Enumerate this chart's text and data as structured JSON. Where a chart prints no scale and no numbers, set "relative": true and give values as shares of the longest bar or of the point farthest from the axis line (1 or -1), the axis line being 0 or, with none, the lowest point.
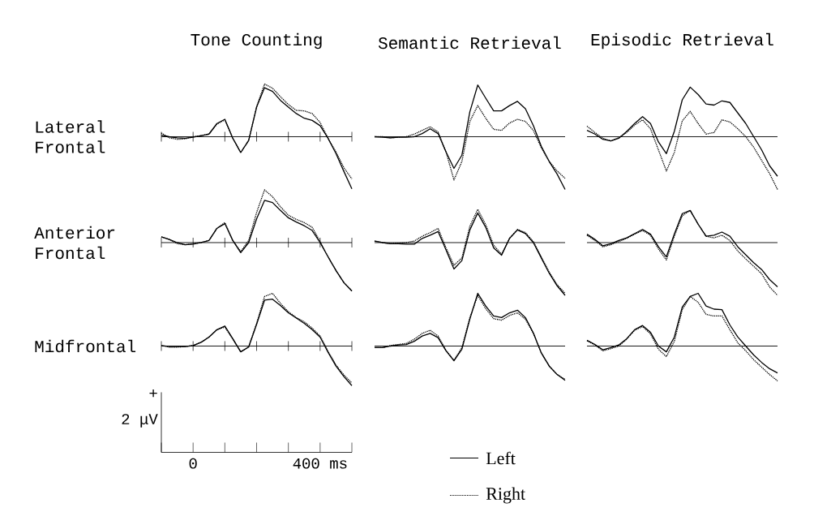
{
  "chart_data": [
    {
      "type": "line",
      "title": "Tone Counting",
      "ylabel": "Lateral Frontal",
      "relative": true,
      "tick_labels": false,
      "x": [
        -100,
        -75,
        -50,
        -25,
        0,
        25,
        50,
        75,
        100,
        125,
        150,
        175,
        200,
        225,
        250,
        275,
        300,
        325,
        350,
        375,
        400,
        425,
        450,
        475,
        500
      ],
      "xlim": [
        -100,
        500
      ],
      "xticks": [
        {
          "value": -100,
          "label": null
        },
        {
          "value": 0,
          "label": null
        },
        {
          "value": 100,
          "label": null
        },
        {
          "value": 200,
          "label": null
        },
        {
          "value": 300,
          "label": null
        },
        {
          "value": 400,
          "label": null
        },
        {
          "value": 500,
          "label": null
        }
      ],
      "series": [
        {
          "color": "#000000",
          "line_style": "solid",
          "values": [
            0.03,
            0,
            -0.02,
            -0.03,
            -0.01,
            0.02,
            0.05,
            0.25,
            0.33,
            -0.03,
            -0.3,
            -0.07,
            0.56,
            0.93,
            0.86,
            0.69,
            0.56,
            0.44,
            0.35,
            0.31,
            0.21,
            -0.03,
            -0.32,
            -0.66,
            -0.99
          ]
        },
        {
          "color": "#000000",
          "line_style": "dotted",
          "values": [
            0.07,
            -0.02,
            -0.05,
            -0.04,
            0,
            0.02,
            0.05,
            0.24,
            0.32,
            -0.03,
            -0.3,
            -0.07,
            0.57,
            1.0,
            0.92,
            0.76,
            0.61,
            0.5,
            0.49,
            0.44,
            0.27,
            -0.03,
            -0.29,
            -0.59,
            -0.8
          ]
        }
      ]
    },
    {
      "type": "line",
      "title": "Semantic Retrieval",
      "relative": true,
      "tick_labels": false,
      "categories": [
        null,
        null,
        null,
        null,
        null,
        null,
        null,
        null,
        null,
        null,
        null,
        null,
        null,
        null,
        null,
        null,
        null,
        null,
        null,
        null,
        null,
        null,
        null,
        null,
        null
      ],
      "series": [
        {
          "color": "#000000",
          "line_style": "solid",
          "values": [
            0,
            -0.01,
            -0.02,
            -0.01,
            -0.01,
            0,
            0.06,
            0.15,
            0.06,
            -0.29,
            -0.6,
            -0.35,
            0.47,
            0.98,
            0.73,
            0.49,
            0.49,
            0.59,
            0.67,
            0.53,
            0.21,
            -0.18,
            -0.47,
            -0.71,
            -1.0
          ]
        },
        {
          "color": "#000000",
          "line_style": "dotted",
          "values": [
            0,
            0,
            -0.02,
            -0.01,
            0,
            0.05,
            0.12,
            0.19,
            0.09,
            -0.29,
            -0.82,
            -0.47,
            0.29,
            0.59,
            0.35,
            0.14,
            0.12,
            0.26,
            0.33,
            0.29,
            0.12,
            -0.21,
            -0.47,
            -0.65,
            -0.79
          ]
        }
      ]
    },
    {
      "type": "line",
      "title": "Episodic Retrieval",
      "relative": true,
      "tick_labels": false,
      "categories": [
        null,
        null,
        null,
        null,
        null,
        null,
        null,
        null,
        null,
        null,
        null,
        null,
        null,
        null,
        null,
        null,
        null,
        null,
        null,
        null,
        null,
        null,
        null,
        null,
        null
      ],
      "series": [
        {
          "color": "#000000",
          "line_style": "solid",
          "values": [
            0.12,
            0.05,
            -0.05,
            -0.08,
            -0.03,
            0.1,
            0.25,
            0.38,
            0.25,
            -0.1,
            -0.32,
            0.1,
            0.7,
            0.94,
            0.8,
            0.62,
            0.6,
            0.68,
            0.65,
            0.45,
            0.25,
            0,
            -0.25,
            -0.55,
            -0.75
          ]
        },
        {
          "color": "#000000",
          "line_style": "dotted",
          "values": [
            0.2,
            0.08,
            -0.03,
            -0.08,
            -0.02,
            0.08,
            0.22,
            0.32,
            0.15,
            -0.25,
            -0.65,
            -0.3,
            0.3,
            0.48,
            0.25,
            0.05,
            0.08,
            0.32,
            0.28,
            0.15,
            0,
            -0.2,
            -0.45,
            -0.7,
            -1.0
          ]
        }
      ]
    },
    {
      "type": "line",
      "ylabel": "Anterior Frontal",
      "relative": true,
      "tick_labels": false,
      "x": [
        -100,
        -75,
        -50,
        -25,
        0,
        25,
        50,
        75,
        100,
        125,
        150,
        175,
        200,
        225,
        250,
        275,
        300,
        325,
        350,
        375,
        400,
        425,
        450,
        475,
        500
      ],
      "xlim": [
        -100,
        500
      ],
      "xticks": [
        {
          "value": -100,
          "label": null
        },
        {
          "value": 0,
          "label": null
        },
        {
          "value": 100,
          "label": null
        },
        {
          "value": 200,
          "label": null
        },
        {
          "value": 300,
          "label": null
        },
        {
          "value": 400,
          "label": null
        },
        {
          "value": 500,
          "label": null
        }
      ],
      "series": [
        {
          "color": "#000000",
          "line_style": "solid",
          "values": [
            0.11,
            0.06,
            0,
            -0.04,
            -0.03,
            0,
            0.04,
            0.27,
            0.36,
            0.04,
            -0.19,
            0,
            0.45,
            0.8,
            0.76,
            0.61,
            0.47,
            0.39,
            0.32,
            0.23,
            0,
            -0.27,
            -0.53,
            -0.76,
            -0.92
          ]
        },
        {
          "color": "#000000",
          "line_style": "dotted",
          "values": [
            0.11,
            0.06,
            -0.02,
            -0.04,
            -0.02,
            0,
            0.04,
            0.27,
            0.38,
            0.04,
            -0.17,
            0.04,
            0.57,
            1.0,
            0.87,
            0.68,
            0.52,
            0.44,
            0.38,
            0.29,
            0.02,
            -0.27,
            -0.53,
            -0.76,
            -0.91
          ]
        }
      ]
    },
    {
      "type": "line",
      "relative": true,
      "tick_labels": false,
      "categories": [
        null,
        null,
        null,
        null,
        null,
        null,
        null,
        null,
        null,
        null,
        null,
        null,
        null,
        null,
        null,
        null,
        null,
        null,
        null,
        null,
        null,
        null,
        null,
        null,
        null
      ],
      "series": [
        {
          "color": "#000000",
          "line_style": "solid",
          "values": [
            0.03,
            0,
            -0.02,
            -0.02,
            -0.03,
            -0.03,
            0.08,
            0.14,
            0.21,
            -0.14,
            -0.5,
            -0.34,
            0.24,
            0.56,
            0.29,
            -0.1,
            -0.24,
            0.08,
            0.24,
            0.17,
            0,
            -0.29,
            -0.58,
            -0.82,
            -1.0
          ]
        },
        {
          "color": "#000000",
          "line_style": "dotted",
          "values": [
            0.03,
            0,
            -0.02,
            -0.01,
            0,
            0.03,
            0.12,
            0.19,
            0.27,
            -0.1,
            -0.43,
            -0.29,
            0.31,
            0.63,
            0.34,
            -0.05,
            -0.22,
            0.08,
            0.25,
            0.19,
            0.02,
            -0.27,
            -0.56,
            -0.8,
            -0.96
          ]
        }
      ]
    },
    {
      "type": "line",
      "relative": true,
      "tick_labels": false,
      "categories": [
        null,
        null,
        null,
        null,
        null,
        null,
        null,
        null,
        null,
        null,
        null,
        null,
        null,
        null,
        null,
        null,
        null,
        null,
        null,
        null,
        null,
        null,
        null,
        null,
        null
      ],
      "series": [
        {
          "color": "#000000",
          "line_style": "solid",
          "values": [
            0.16,
            0.06,
            -0.06,
            -0.02,
            0.04,
            0.09,
            0.17,
            0.25,
            0.16,
            -0.08,
            -0.27,
            0.16,
            0.55,
            0.61,
            0.35,
            0.12,
            0.14,
            0.2,
            0.12,
            -0.08,
            -0.23,
            -0.38,
            -0.51,
            -0.7,
            -0.84
          ]
        },
        {
          "color": "#000000",
          "line_style": "dotted",
          "values": [
            0.14,
            0.04,
            -0.08,
            -0.04,
            0.02,
            0.08,
            0.16,
            0.23,
            0.14,
            -0.12,
            -0.33,
            0.12,
            0.51,
            0.61,
            0.35,
            0.12,
            0.09,
            0.14,
            0.04,
            -0.16,
            -0.31,
            -0.45,
            -0.59,
            -0.84,
            -1.0
          ]
        }
      ]
    },
    {
      "type": "line",
      "ylabel": "Midfrontal",
      "relative": true,
      "tick_labels": "x",
      "annotations": [
        "+",
        "2 μV"
      ],
      "x": [
        -100,
        -75,
        -50,
        -25,
        0,
        25,
        50,
        75,
        100,
        125,
        150,
        175,
        200,
        225,
        250,
        275,
        300,
        325,
        350,
        375,
        400,
        425,
        450,
        475,
        500
      ],
      "xlim": [
        -100,
        500
      ],
      "xticks": [
        {
          "value": -100,
          "label": null
        },
        0,
        {
          "value": 100,
          "label": null
        },
        {
          "value": 200,
          "label": null
        },
        {
          "value": 300,
          "label": null
        },
        {
          "value": 400,
          "label": "400 ms"
        },
        {
          "value": 500,
          "label": null
        }
      ],
      "series": [
        {
          "color": "#000000",
          "line_style": "solid",
          "values": [
            0.01,
            -0.01,
            -0.01,
            -0.01,
            0.01,
            0.07,
            0.17,
            0.31,
            0.38,
            0.14,
            -0.11,
            -0.02,
            0.41,
            0.87,
            0.89,
            0.77,
            0.63,
            0.53,
            0.43,
            0.31,
            0.17,
            -0.12,
            -0.38,
            -0.58,
            -0.75
          ]
        },
        {
          "color": "#000000",
          "line_style": "dotted",
          "values": [
            0.01,
            -0.02,
            -0.02,
            -0.01,
            0.01,
            0.07,
            0.17,
            0.31,
            0.36,
            0.13,
            -0.11,
            -0.01,
            0.43,
            0.94,
            1.0,
            0.81,
            0.65,
            0.54,
            0.46,
            0.34,
            0.19,
            -0.1,
            -0.36,
            -0.55,
            -0.7
          ]
        }
      ]
    },
    {
      "type": "line",
      "relative": true,
      "tick_labels": false,
      "legend": "bottom",
      "categories": [
        null,
        null,
        null,
        null,
        null,
        null,
        null,
        null,
        null,
        null,
        null,
        null,
        null,
        null,
        null,
        null,
        null,
        null,
        null,
        null,
        null,
        null,
        null,
        null,
        null
      ],
      "series": [
        {
          "name": "Left",
          "color": "#000000",
          "line_style": "solid",
          "values": [
            -0.03,
            -0.03,
            0,
            0.02,
            0.03,
            0.09,
            0.19,
            0.24,
            0.16,
            -0.09,
            -0.28,
            -0.06,
            0.51,
            1.0,
            0.76,
            0.57,
            0.54,
            0.63,
            0.68,
            0.54,
            0.25,
            -0.13,
            -0.38,
            -0.54,
            -0.65
          ]
        },
        {
          "name": "Right",
          "color": "#000000",
          "line_style": "dotted",
          "values": [
            -0.03,
            -0.03,
            0.01,
            0.03,
            0.05,
            0.13,
            0.24,
            0.3,
            0.19,
            -0.08,
            -0.27,
            -0.03,
            0.54,
            0.96,
            0.71,
            0.52,
            0.49,
            0.58,
            0.63,
            0.51,
            0.24,
            -0.13,
            -0.38,
            -0.54,
            -0.63
          ]
        }
      ]
    },
    {
      "type": "line",
      "relative": true,
      "tick_labels": false,
      "categories": [
        null,
        null,
        null,
        null,
        null,
        null,
        null,
        null,
        null,
        null,
        null,
        null,
        null,
        null,
        null,
        null,
        null,
        null,
        null,
        null,
        null,
        null,
        null,
        null,
        null
      ],
      "series": [
        {
          "color": "#000000",
          "line_style": "solid",
          "values": [
            0.11,
            0.03,
            -0.07,
            -0.03,
            0.02,
            0.14,
            0.31,
            0.39,
            0.26,
            0,
            -0.11,
            0.17,
            0.74,
            0.94,
            1.0,
            0.76,
            0.7,
            0.69,
            0.4,
            0.17,
            0,
            -0.17,
            -0.31,
            -0.43,
            -0.51
          ]
        },
        {
          "color": "#000000",
          "line_style": "dotted",
          "values": [
            0.1,
            0.02,
            -0.09,
            -0.05,
            0,
            0.13,
            0.3,
            0.37,
            0.23,
            -0.06,
            -0.2,
            0.09,
            0.69,
            0.94,
            0.83,
            0.6,
            0.57,
            0.57,
            0.31,
            0.06,
            -0.09,
            -0.26,
            -0.4,
            -0.54,
            -0.66
          ]
        }
      ]
    }
  ]
}
